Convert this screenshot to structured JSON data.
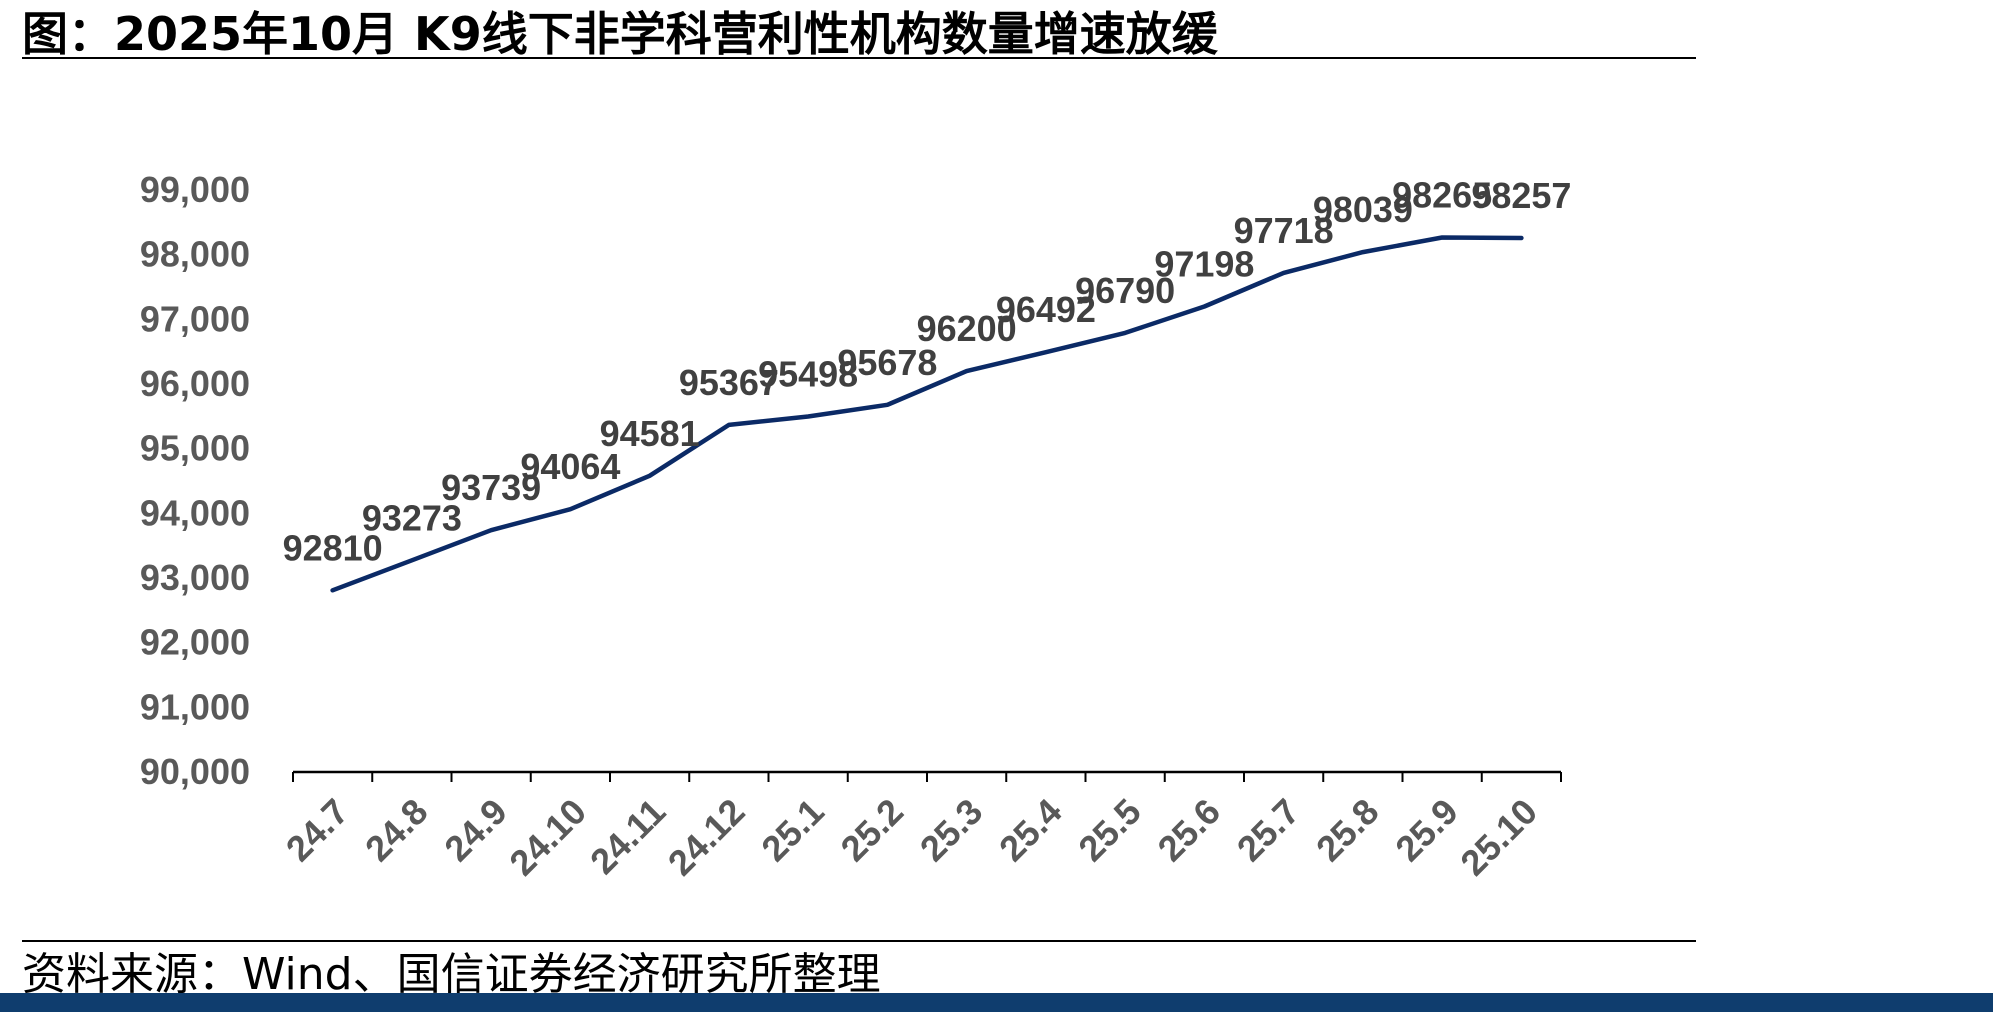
{
  "title": "图：2025年10月 K9线下非学科营利性机构数量增速放缓",
  "source": "资料来源：Wind、国信证券经济研究所整理",
  "colors": {
    "line": "#0b2a66",
    "axis": "#000000",
    "footer_band": "#0f3d6e"
  },
  "chart_data": {
    "type": "line",
    "title": "",
    "xlabel": "",
    "ylabel": "",
    "ylim": [
      90000,
      99000
    ],
    "y_ticks": [
      90000,
      91000,
      92000,
      93000,
      94000,
      95000,
      96000,
      97000,
      98000,
      99000
    ],
    "y_tick_labels": [
      "90,000",
      "91,000",
      "92,000",
      "93,000",
      "94,000",
      "95,000",
      "96,000",
      "97,000",
      "98,000",
      "99,000"
    ],
    "categories": [
      "24.7",
      "24.8",
      "24.9",
      "24.10",
      "24.11",
      "24.12",
      "25.1",
      "25.2",
      "25.3",
      "25.4",
      "25.5",
      "25.6",
      "25.7",
      "25.8",
      "25.9",
      "25.10"
    ],
    "series": [
      {
        "values": [
          92810,
          93273,
          93739,
          94064,
          94581,
          95367,
          95498,
          95678,
          96200,
          96492,
          96790,
          97198,
          97718,
          98039,
          98265,
          98257
        ],
        "data_labels": [
          "92810",
          "93273",
          "93739",
          "94064",
          "94581",
          "95367",
          "95498",
          "95678",
          "96200",
          "96492",
          "96790",
          "97198",
          "97718",
          "98039",
          "98265",
          "98257"
        ]
      }
    ],
    "grid": false,
    "legend": "none"
  }
}
